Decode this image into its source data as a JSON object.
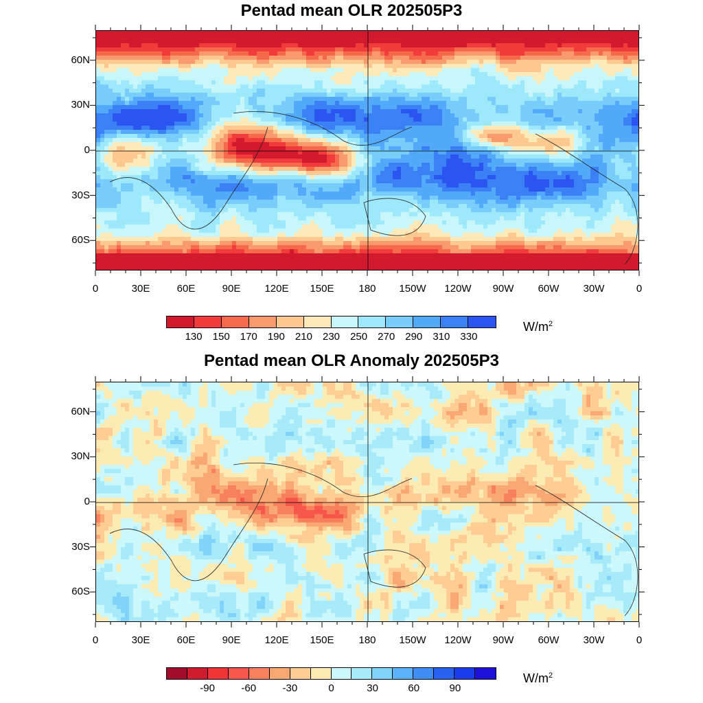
{
  "panels": [
    {
      "title": "Pentad mean OLR 202505P3",
      "unit_base": "W/m",
      "unit_exp": "2",
      "palette": [
        "#d11a2d",
        "#f23c3c",
        "#f66a4c",
        "#f99a6c",
        "#fdc990",
        "#fdeab8",
        "#c7f7fb",
        "#9ee8fb",
        "#78cdfb",
        "#54aafa",
        "#3b81f5",
        "#2a55f0"
      ],
      "colorbar_labels": [
        "130",
        "150",
        "170",
        "190",
        "210",
        "230",
        "250",
        "270",
        "290",
        "310",
        "330"
      ],
      "background_field": "mostly 230-270 W/m2 in subtropics, low OLR (deep convection) over Maritime Continent/Bay of Bengal, very low over Antarctica",
      "field_seed": 11,
      "field_mode": "mean"
    },
    {
      "title": "Pentad mean OLR Anomaly 202505P3",
      "unit_base": "W/m",
      "unit_exp": "2",
      "palette": [
        "#a30f2a",
        "#cf1c2e",
        "#ef3536",
        "#f6574a",
        "#f7815c",
        "#f9a874",
        "#fdcd94",
        "#fdebb4",
        "#cdf8fb",
        "#a7eaf9",
        "#82d3fa",
        "#5cb3fa",
        "#3f8df5",
        "#2962ef",
        "#1a3de9",
        "#1d10d7"
      ],
      "colorbar_labels": [
        "-90",
        "-60",
        "-30",
        "0",
        "30",
        "60",
        "90"
      ],
      "field_seed": 29,
      "field_mode": "anomaly"
    }
  ],
  "axes": {
    "lat_labels": [
      "60N",
      "30N",
      "0",
      "30S",
      "60S"
    ],
    "lat_values": [
      60,
      30,
      0,
      -30,
      -60
    ],
    "lon_labels": [
      "0",
      "30E",
      "60E",
      "90E",
      "120E",
      "150E",
      "180",
      "150W",
      "120W",
      "90W",
      "60W",
      "30W",
      "0"
    ],
    "lon_values": [
      0,
      30,
      60,
      90,
      120,
      150,
      180,
      210,
      240,
      270,
      300,
      330,
      360
    ],
    "lat_range": [
      -80,
      80
    ],
    "lon_range": [
      0,
      360
    ]
  }
}
